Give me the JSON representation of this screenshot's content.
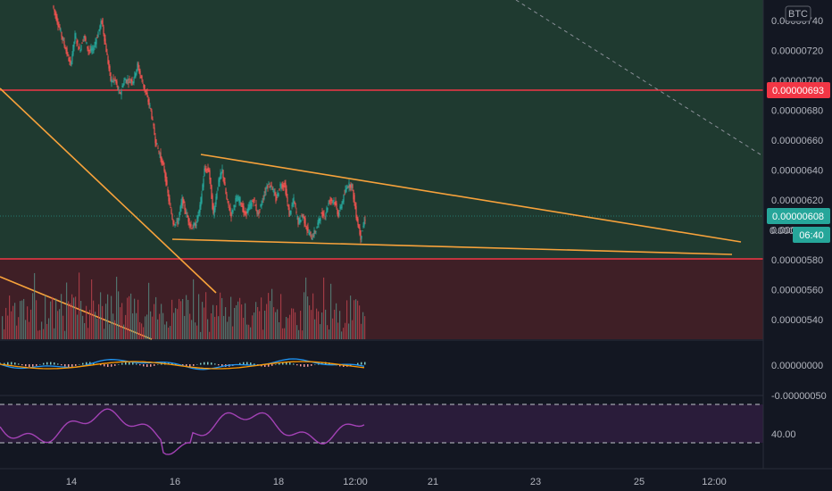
{
  "currency_badge": "BTC",
  "chart_data": {
    "type": "candlestick",
    "price_axis": {
      "ticks": [
        "0.00000740",
        "0.00000720",
        "0.00000700",
        "0.00000680",
        "0.00000660",
        "0.00000640",
        "0.00000620",
        "0.00000600",
        "0.00000580",
        "0.00000560",
        "0.00000540"
      ],
      "range": [
        5.27e-06,
        7.5e-06
      ]
    },
    "time_axis": {
      "ticks": [
        "14",
        "16",
        "18",
        "12:00",
        "21",
        "23",
        "25",
        "12:00"
      ]
    },
    "resistance_level": {
      "label": "0.00000693",
      "value": 6.93e-06,
      "color": "#f23645"
    },
    "last_price": {
      "label": "0.00000608",
      "value": 6.08e-06,
      "color": "#26a69a"
    },
    "countdown": {
      "prefix": "0.0000",
      "label": "06:40"
    },
    "zones": [
      {
        "name": "upper-zone",
        "from": 5.8e-06,
        "to": 7.5e-06,
        "color": "#1f3a30"
      },
      {
        "name": "lower-zone",
        "from": 5.27e-06,
        "to": 5.8e-06,
        "color": "#3f1f26"
      }
    ],
    "trendlines": [
      {
        "name": "triangle-top",
        "from": [
          225,
          6.5e-06
        ],
        "to": [
          830,
          5.9e-06
        ],
        "color": "#f7a23b"
      },
      {
        "name": "triangle-bottom",
        "from": [
          193,
          5.93e-06
        ],
        "to": [
          820,
          5.84e-06
        ],
        "color": "#f7a23b"
      }
    ],
    "candles_path": [
      [
        60,
        7.5e-06
      ],
      [
        65,
        7.4e-06
      ],
      [
        70,
        7.3e-06
      ],
      [
        75,
        7.2e-06
      ],
      [
        80,
        7.1e-06
      ],
      [
        85,
        7.3e-06
      ],
      [
        90,
        7.2e-06
      ],
      [
        95,
        7.3e-06
      ],
      [
        100,
        7.2e-06
      ],
      [
        105,
        7.2e-06
      ],
      [
        110,
        7.3e-06
      ],
      [
        115,
        7.4e-06
      ],
      [
        120,
        7.2e-06
      ],
      [
        125,
        7e-06
      ],
      [
        130,
        7e-06
      ],
      [
        135,
        6.9e-06
      ],
      [
        140,
        7e-06
      ],
      [
        145,
        7e-06
      ],
      [
        150,
        7e-06
      ],
      [
        155,
        7.1e-06
      ],
      [
        160,
        7e-06
      ],
      [
        165,
        6.9e-06
      ],
      [
        170,
        6.8e-06
      ],
      [
        175,
        6.6e-06
      ],
      [
        180,
        6.5e-06
      ],
      [
        185,
        6.4e-06
      ],
      [
        190,
        6.2e-06
      ],
      [
        195,
        6.05e-06
      ],
      [
        200,
        6.05e-06
      ],
      [
        205,
        6.2e-06
      ],
      [
        210,
        6.1e-06
      ],
      [
        215,
        6.02e-06
      ],
      [
        220,
        6.03e-06
      ],
      [
        225,
        6.15e-06
      ],
      [
        230,
        6.4e-06
      ],
      [
        235,
        6.4e-06
      ],
      [
        240,
        6.1e-06
      ],
      [
        245,
        6.3e-06
      ],
      [
        250,
        6.4e-06
      ],
      [
        255,
        6.2e-06
      ],
      [
        260,
        6.1e-06
      ],
      [
        265,
        6.2e-06
      ],
      [
        270,
        6.2e-06
      ],
      [
        275,
        6.1e-06
      ],
      [
        280,
        6.15e-06
      ],
      [
        285,
        6.2e-06
      ],
      [
        290,
        6.1e-06
      ],
      [
        295,
        6.2e-06
      ],
      [
        300,
        6.3e-06
      ],
      [
        305,
        6.3e-06
      ],
      [
        310,
        6.2e-06
      ],
      [
        315,
        6.3e-06
      ],
      [
        320,
        6.3e-06
      ],
      [
        325,
        6.1e-06
      ],
      [
        330,
        6.2e-06
      ],
      [
        335,
        6.05e-06
      ],
      [
        340,
        6.1e-06
      ],
      [
        345,
        6e-06
      ],
      [
        350,
        5.95e-06
      ],
      [
        355,
        6e-06
      ],
      [
        360,
        6.1e-06
      ],
      [
        365,
        6.1e-06
      ],
      [
        370,
        6.2e-06
      ],
      [
        375,
        6.2e-06
      ],
      [
        380,
        6.1e-06
      ],
      [
        385,
        6.2e-06
      ],
      [
        390,
        6.3e-06
      ],
      [
        395,
        6.3e-06
      ],
      [
        400,
        6.1e-06
      ],
      [
        405,
        5.95e-06
      ],
      [
        410,
        6.08e-06
      ]
    ],
    "macd": {
      "zero_label": "0.00000000",
      "neg_label": "-0.00000050"
    },
    "rsi": {
      "level_label": "40.00",
      "upper": 70,
      "lower": 30,
      "color": "#a342b5"
    }
  }
}
